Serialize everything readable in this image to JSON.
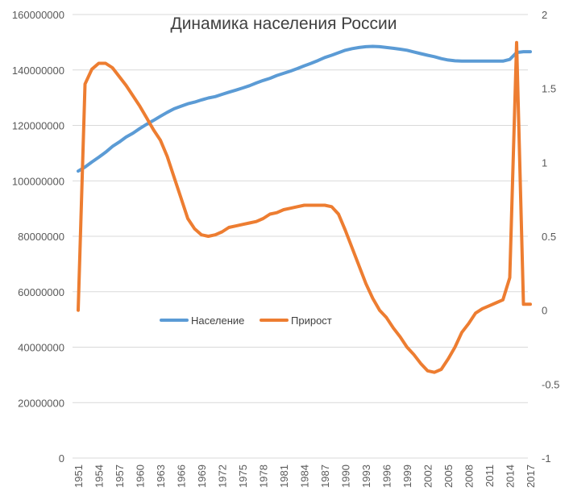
{
  "chart_data": {
    "type": "line",
    "title": "Динамика населения России",
    "colors": {
      "population": "#5b9bd5",
      "growth": "#ed7d31",
      "grid": "#d9d9d9"
    },
    "legend": {
      "placement": "center-left",
      "entries": [
        "Население",
        "Прирост"
      ]
    },
    "grid": true,
    "y_left": {
      "min": 0,
      "max": 160000000,
      "ticks": [
        "0",
        "20000000",
        "40000000",
        "60000000",
        "80000000",
        "100000000",
        "120000000",
        "140000000",
        "160000000"
      ]
    },
    "y_right": {
      "min": -1,
      "max": 2,
      "ticks": [
        "-1",
        "-0.5",
        "0",
        "0.5",
        "1",
        "1.5",
        "2"
      ]
    },
    "x_labels": [
      "1951",
      "1954",
      "1957",
      "1960",
      "1963",
      "1966",
      "1969",
      "1972",
      "1975",
      "1978",
      "1981",
      "1984",
      "1987",
      "1990",
      "1993",
      "1996",
      "1999",
      "2002",
      "2005",
      "2008",
      "2011",
      "2014",
      "2017"
    ],
    "x": [
      1951,
      1952,
      1953,
      1954,
      1955,
      1956,
      1957,
      1958,
      1959,
      1960,
      1961,
      1962,
      1963,
      1964,
      1965,
      1966,
      1967,
      1968,
      1969,
      1970,
      1971,
      1972,
      1973,
      1974,
      1975,
      1976,
      1977,
      1978,
      1979,
      1980,
      1981,
      1982,
      1983,
      1984,
      1985,
      1986,
      1987,
      1988,
      1989,
      1990,
      1991,
      1992,
      1993,
      1994,
      1995,
      1996,
      1997,
      1998,
      1999,
      2000,
      2001,
      2002,
      2003,
      2004,
      2005,
      2006,
      2007,
      2008,
      2009,
      2010,
      2011,
      2012,
      2013,
      2014,
      2015,
      2016,
      2017
    ],
    "series": [
      {
        "name": "Население",
        "axis": "left",
        "values": [
          103500000,
          105000000,
          106800000,
          108500000,
          110300000,
          112400000,
          114000000,
          115800000,
          117200000,
          118900000,
          120400000,
          121800000,
          123300000,
          124700000,
          126000000,
          126900000,
          127800000,
          128400000,
          129200000,
          129900000,
          130400000,
          131200000,
          132000000,
          132700000,
          133500000,
          134300000,
          135300000,
          136200000,
          137000000,
          138000000,
          138800000,
          139600000,
          140500000,
          141500000,
          142400000,
          143400000,
          144500000,
          145300000,
          146200000,
          147100000,
          147700000,
          148100000,
          148400000,
          148500000,
          148400000,
          148100000,
          147800000,
          147500000,
          147100000,
          146500000,
          145900000,
          145300000,
          144800000,
          144100000,
          143600000,
          143300000,
          143200000,
          143200000,
          143200000,
          143200000,
          143200000,
          143200000,
          143200000,
          143800000,
          146300000,
          146600000,
          146600000
        ]
      },
      {
        "name": "Прирост",
        "axis": "right",
        "values": [
          0,
          1.53,
          1.63,
          1.67,
          1.67,
          1.64,
          1.58,
          1.52,
          1.45,
          1.38,
          1.3,
          1.22,
          1.15,
          1.04,
          0.9,
          0.76,
          0.62,
          0.55,
          0.51,
          0.5,
          0.51,
          0.53,
          0.56,
          0.57,
          0.58,
          0.59,
          0.6,
          0.62,
          0.65,
          0.66,
          0.68,
          0.69,
          0.7,
          0.71,
          0.71,
          0.71,
          0.71,
          0.7,
          0.65,
          0.54,
          0.42,
          0.3,
          0.18,
          0.08,
          0.0,
          -0.05,
          -0.12,
          -0.18,
          -0.25,
          -0.3,
          -0.36,
          -0.41,
          -0.42,
          -0.4,
          -0.33,
          -0.25,
          -0.15,
          -0.09,
          -0.02,
          0.01,
          0.03,
          0.05,
          0.07,
          0.22,
          1.81,
          0.04,
          0.04
        ]
      }
    ]
  }
}
